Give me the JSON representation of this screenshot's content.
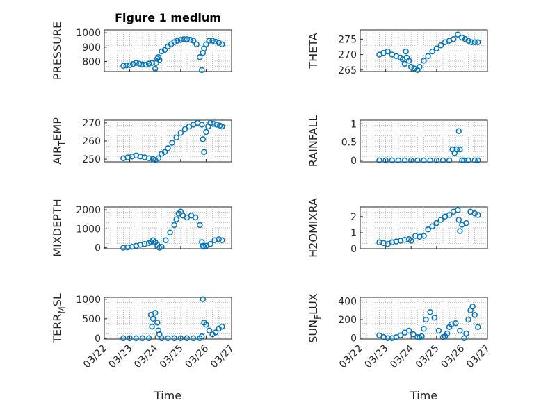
{
  "chart_data": [
    {
      "type": "scatter",
      "title": "Figure 1 medium",
      "ylabel": "PRESSURE",
      "xlim": [
        "03/22",
        "03/27"
      ],
      "ylim": [
        730,
        1020
      ],
      "yticks": [
        "800",
        "900",
        "1000"
      ],
      "series_color": "#0072bd",
      "x": [
        "03/22 18:00",
        "03/22 21:00",
        "03/23 00:00",
        "03/23 03:00",
        "03/23 06:00",
        "03/23 09:00",
        "03/23 12:00",
        "03/23 15:00",
        "03/23 18:00",
        "03/23 21:00",
        "03/24 00:00",
        "03/24 01:00",
        "03/24 02:00",
        "03/24 03:00",
        "03/24 04:00",
        "03/24 06:00",
        "03/24 09:00",
        "03/24 12:00",
        "03/24 15:00",
        "03/24 18:00",
        "03/24 21:00",
        "03/25 00:00",
        "03/25 03:00",
        "03/25 06:00",
        "03/25 09:00",
        "03/25 12:00",
        "03/25 15:00",
        "03/25 18:00",
        "03/25 20:00",
        "03/25 21:00",
        "03/25 22:00",
        "03/26 00:00",
        "03/26 03:00",
        "03/26 06:00",
        "03/26 09:00",
        "03/26 12:00",
        "03/26 15:00"
      ],
      "y": [
        770,
        772,
        775,
        782,
        790,
        785,
        780,
        778,
        785,
        790,
        750,
        790,
        820,
        830,
        810,
        870,
        880,
        905,
        920,
        935,
        945,
        950,
        955,
        955,
        952,
        945,
        920,
        830,
        740,
        860,
        890,
        920,
        945,
        945,
        938,
        930,
        920
      ]
    },
    {
      "type": "scatter",
      "ylabel": "THETA",
      "xlim": [
        "03/22",
        "03/27"
      ],
      "ylim": [
        264.5,
        278
      ],
      "yticks": [
        "265",
        "270",
        "275"
      ],
      "series_color": "#0072bd",
      "x": [
        "03/22 18:00",
        "03/22 22:00",
        "03/23 02:00",
        "03/23 06:00",
        "03/23 10:00",
        "03/23 14:00",
        "03/23 16:00",
        "03/23 18:00",
        "03/23 19:00",
        "03/23 20:00",
        "03/23 22:00",
        "03/24 00:00",
        "03/24 03:00",
        "03/24 06:00",
        "03/24 08:00",
        "03/24 12:00",
        "03/24 16:00",
        "03/24 20:00",
        "03/25 00:00",
        "03/25 04:00",
        "03/25 08:00",
        "03/25 12:00",
        "03/25 16:00",
        "03/25 20:00",
        "03/26 00:00",
        "03/26 03:00",
        "03/26 06:00",
        "03/26 09:00",
        "03/26 12:00",
        "03/26 15:00"
      ],
      "y": [
        270,
        270.5,
        271,
        270,
        269.5,
        269,
        268.5,
        267,
        271,
        269,
        268,
        266,
        265.5,
        265,
        266,
        268,
        269.5,
        271,
        272,
        273,
        274,
        274.5,
        275,
        276.5,
        275.5,
        275,
        274.5,
        274,
        274,
        274
      ]
    },
    {
      "type": "scatter",
      "ylabel": "AIR_TEMP",
      "xlim": [
        "03/22",
        "03/27"
      ],
      "ylim": [
        248.5,
        271.5
      ],
      "yticks": [
        "250",
        "260",
        "270"
      ],
      "series_color": "#0072bd",
      "x": [
        "03/22 18:00",
        "03/22 22:00",
        "03/23 02:00",
        "03/23 06:00",
        "03/23 10:00",
        "03/23 14:00",
        "03/23 18:00",
        "03/23 22:00",
        "03/24 00:00",
        "03/24 03:00",
        "03/24 06:00",
        "03/24 09:00",
        "03/24 12:00",
        "03/24 16:00",
        "03/24 20:00",
        "03/25 00:00",
        "03/25 04:00",
        "03/25 08:00",
        "03/25 12:00",
        "03/25 16:00",
        "03/25 20:00",
        "03/25 21:00",
        "03/25 22:00",
        "03/26 00:00",
        "03/26 02:00",
        "03/26 04:00",
        "03/26 07:00",
        "03/26 10:00",
        "03/26 13:00",
        "03/26 15:00"
      ],
      "y": [
        250.5,
        251,
        251.5,
        252,
        251.5,
        251,
        250.5,
        250,
        249.5,
        250.5,
        253,
        254,
        256,
        259,
        262,
        264.5,
        266.5,
        268,
        269,
        270,
        269,
        261,
        254,
        265,
        268,
        270,
        269.5,
        269,
        268.5,
        268
      ]
    },
    {
      "type": "scatter",
      "ylabel": "RAINFALL",
      "xlim": [
        "03/22",
        "03/27"
      ],
      "ylim": [
        -0.04,
        1.1
      ],
      "yticks": [
        "0",
        "0.5",
        "1"
      ],
      "series_color": "#0072bd",
      "x": [
        "03/22 18:00",
        "03/23 00:00",
        "03/23 06:00",
        "03/23 12:00",
        "03/23 18:00",
        "03/24 00:00",
        "03/24 06:00",
        "03/24 12:00",
        "03/24 18:00",
        "03/25 00:00",
        "03/25 06:00",
        "03/25 12:00",
        "03/25 15:00",
        "03/25 17:00",
        "03/25 19:00",
        "03/25 21:00",
        "03/25 22:00",
        "03/26 00:00",
        "03/26 02:00",
        "03/26 06:00",
        "03/26 12:00",
        "03/26 15:00"
      ],
      "y": [
        0,
        0,
        0,
        0,
        0,
        0,
        0,
        0,
        0,
        0,
        0,
        0,
        0.3,
        0.2,
        0.3,
        0.8,
        0.3,
        0,
        0,
        0,
        0,
        0
      ]
    },
    {
      "type": "scatter",
      "ylabel": "MIXDEPTH",
      "xlim": [
        "03/22",
        "03/27"
      ],
      "ylim": [
        -50,
        2150
      ],
      "yticks": [
        "0",
        "1000",
        "2000"
      ],
      "series_color": "#0072bd",
      "x": [
        "03/22 18:00",
        "03/22 22:00",
        "03/23 02:00",
        "03/23 06:00",
        "03/23 10:00",
        "03/23 14:00",
        "03/23 18:00",
        "03/23 20:00",
        "03/23 22:00",
        "03/24 00:00",
        "03/24 02:00",
        "03/24 04:00",
        "03/24 06:00",
        "03/24 10:00",
        "03/24 14:00",
        "03/24 18:00",
        "03/24 20:00",
        "03/24 22:00",
        "03/25 00:00",
        "03/25 02:00",
        "03/25 06:00",
        "03/25 10:00",
        "03/25 14:00",
        "03/25 18:00",
        "03/25 20:00",
        "03/25 21:00",
        "03/25 22:00",
        "03/26 00:00",
        "03/26 04:00",
        "03/26 08:00",
        "03/26 12:00",
        "03/26 15:00"
      ],
      "y": [
        0,
        20,
        50,
        100,
        150,
        200,
        250,
        300,
        400,
        300,
        150,
        0,
        50,
        400,
        800,
        1200,
        1500,
        1800,
        1900,
        1700,
        1600,
        1700,
        1600,
        1200,
        300,
        100,
        50,
        100,
        200,
        400,
        450,
        400
      ]
    },
    {
      "type": "scatter",
      "ylabel": "H2OMIXRA",
      "xlim": [
        "03/22",
        "03/27"
      ],
      "ylim": [
        0,
        2.6
      ],
      "yticks": [
        "0",
        "1",
        "2"
      ],
      "series_color": "#0072bd",
      "x": [
        "03/22 18:00",
        "03/22 22:00",
        "03/23 02:00",
        "03/23 06:00",
        "03/23 10:00",
        "03/23 14:00",
        "03/23 18:00",
        "03/23 22:00",
        "03/24 00:00",
        "03/24 04:00",
        "03/24 08:00",
        "03/24 12:00",
        "03/24 16:00",
        "03/24 20:00",
        "03/25 00:00",
        "03/25 04:00",
        "03/25 08:00",
        "03/25 12:00",
        "03/25 16:00",
        "03/25 20:00",
        "03/25 21:00",
        "03/25 22:00",
        "03/26 00:00",
        "03/26 04:00",
        "03/26 08:00",
        "03/26 12:00",
        "03/26 15:00"
      ],
      "y": [
        0.4,
        0.35,
        0.3,
        0.4,
        0.45,
        0.5,
        0.55,
        0.6,
        0.5,
        0.8,
        0.75,
        0.8,
        1.2,
        1.4,
        1.6,
        1.8,
        2.0,
        2.1,
        2.3,
        2.4,
        1.8,
        1.1,
        1.5,
        1.6,
        2.3,
        2.2,
        2.1
      ]
    },
    {
      "type": "scatter",
      "ylabel": "TERR_MSL",
      "xlim": [
        "03/22",
        "03/27"
      ],
      "ylim": [
        -20,
        1050
      ],
      "yticks": [
        "0",
        "500",
        "1000"
      ],
      "series_color": "#0072bd",
      "x": [
        "03/22 18:00",
        "03/23 00:00",
        "03/23 06:00",
        "03/23 12:00",
        "03/23 18:00",
        "03/23 20:00",
        "03/23 21:00",
        "03/23 22:00",
        "03/24 00:00",
        "03/24 02:00",
        "03/24 03:00",
        "03/24 04:00",
        "03/24 06:00",
        "03/24 12:00",
        "03/24 18:00",
        "03/25 00:00",
        "03/25 06:00",
        "03/25 12:00",
        "03/25 18:00",
        "03/25 20:00",
        "03/25 21:00",
        "03/25 22:00",
        "03/26 00:00",
        "03/26 03:00",
        "03/26 06:00",
        "03/26 09:00",
        "03/26 12:00",
        "03/26 15:00"
      ],
      "y": [
        0,
        0,
        0,
        0,
        0,
        600,
        300,
        500,
        650,
        400,
        200,
        100,
        0,
        0,
        0,
        0,
        0,
        0,
        0,
        50,
        1000,
        400,
        350,
        200,
        100,
        150,
        250,
        300
      ]
    },
    {
      "type": "scatter",
      "ylabel": "SUN_FLUX",
      "xlim": [
        "03/22",
        "03/27"
      ],
      "ylim": [
        -10,
        440
      ],
      "yticks": [
        "0",
        "200",
        "400"
      ],
      "series_color": "#0072bd",
      "x": [
        "03/22 18:00",
        "03/22 22:00",
        "03/23 02:00",
        "03/23 06:00",
        "03/23 10:00",
        "03/23 14:00",
        "03/23 18:00",
        "03/23 22:00",
        "03/24 02:00",
        "03/24 06:00",
        "03/24 08:00",
        "03/24 10:00",
        "03/24 12:00",
        "03/24 14:00",
        "03/24 18:00",
        "03/24 22:00",
        "03/25 02:00",
        "03/25 06:00",
        "03/25 08:00",
        "03/25 10:00",
        "03/25 12:00",
        "03/25 14:00",
        "03/25 18:00",
        "03/25 22:00",
        "03/26 02:00",
        "03/26 04:00",
        "03/26 06:00",
        "03/26 08:00",
        "03/26 10:00",
        "03/26 12:00",
        "03/26 15:00"
      ],
      "y": [
        30,
        10,
        0,
        0,
        10,
        30,
        60,
        80,
        40,
        10,
        5,
        20,
        100,
        200,
        280,
        220,
        80,
        10,
        20,
        50,
        120,
        150,
        160,
        80,
        0,
        50,
        200,
        300,
        340,
        250,
        120
      ]
    }
  ],
  "ylabel_parts": {
    "air_temp": {
      "base": "AIR",
      "sub": "T",
      "rest": "EMP"
    },
    "terr_msl": {
      "base": "TERR",
      "sub": "M",
      "rest": "SL"
    },
    "sun_flux": {
      "base": "SUN",
      "sub": "F",
      "rest": "LUX"
    }
  },
  "x_tick_labels": [
    "03/22",
    "03/23",
    "03/24",
    "03/25",
    "03/26",
    "03/27"
  ],
  "xlabel": "Time"
}
